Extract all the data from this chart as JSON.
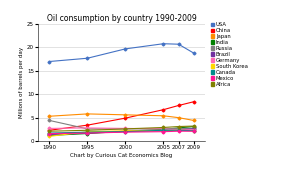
{
  "title": "Oil consumption by country 1990-2009",
  "xlabel": "Chart by Curious Cat Economics Blog",
  "ylabel": "Millions of barrels per day",
  "years": [
    1990,
    1995,
    2000,
    2005,
    2007,
    2009
  ],
  "ylim": [
    0,
    25
  ],
  "yticks": [
    0,
    5,
    10,
    15,
    20,
    25
  ],
  "series": {
    "USA": {
      "color": "#4472C4",
      "values": [
        17.0,
        17.7,
        19.7,
        20.8,
        20.7,
        18.8
      ]
    },
    "China": {
      "color": "#FF0000",
      "values": [
        2.3,
        3.4,
        4.9,
        6.7,
        7.6,
        8.4
      ]
    },
    "Japan": {
      "color": "#FF8C00",
      "values": [
        5.3,
        5.8,
        5.6,
        5.4,
        5.0,
        4.4
      ]
    },
    "India": {
      "color": "#008000",
      "values": [
        1.2,
        1.6,
        2.1,
        2.5,
        2.8,
        3.1
      ]
    },
    "Russia": {
      "color": "#808080",
      "values": [
        4.4,
        2.6,
        2.6,
        2.6,
        2.7,
        2.7
      ]
    },
    "Brazil": {
      "color": "#7030A0",
      "values": [
        1.4,
        1.7,
        2.1,
        2.2,
        2.4,
        2.6
      ]
    },
    "Germany": {
      "color": "#FF69B4",
      "values": [
        2.7,
        2.8,
        2.7,
        2.6,
        2.4,
        2.4
      ]
    },
    "South Korea": {
      "color": "#FFD700",
      "values": [
        1.0,
        2.0,
        2.2,
        2.2,
        2.3,
        2.2
      ]
    },
    "Canada": {
      "color": "#008B8B",
      "values": [
        1.7,
        1.9,
        2.0,
        2.3,
        2.3,
        2.2
      ]
    },
    "Mexico": {
      "color": "#FF1493",
      "values": [
        1.6,
        1.7,
        1.9,
        2.0,
        2.1,
        2.1
      ]
    },
    "Africa": {
      "color": "#808000",
      "values": [
        2.1,
        2.3,
        2.6,
        2.9,
        3.1,
        3.2
      ]
    }
  },
  "background_color": "#ffffff",
  "grid_color": "#cccccc",
  "figsize": [
    2.93,
    1.72
  ],
  "dpi": 100
}
